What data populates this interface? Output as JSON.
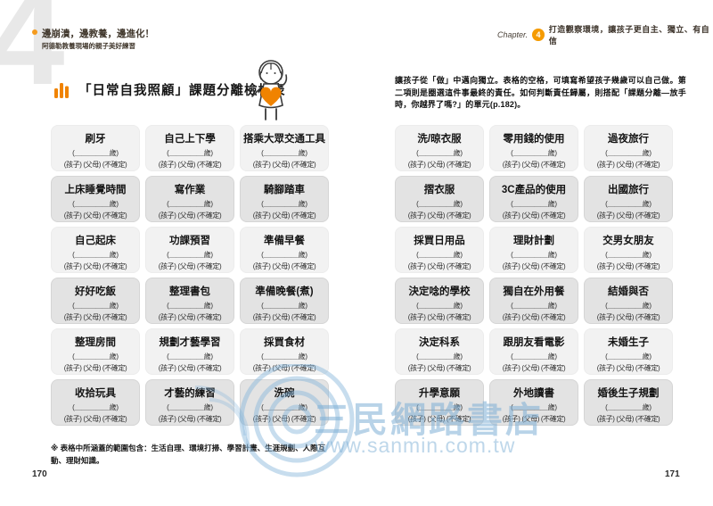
{
  "spread": {
    "big_numeral": "4",
    "tagline_line1": "邊崩潰，邊教養，邊進化！",
    "tagline_line2": "阿德勒教養現場的親子美好練習",
    "chapter_label": "Chapter.",
    "chapter_number": "4",
    "chapter_title": "打造觀察環境，讓孩子更自主、獨立、有自信"
  },
  "page_left": {
    "section_title": "「日常自我照顧」課題分離檢核表",
    "items": [
      "刷牙",
      "自己上下學",
      "搭乘大眾交通工具",
      "上床睡覺時間",
      "寫作業",
      "騎腳踏車",
      "自己起床",
      "功課預習",
      "準備早餐",
      "好好吃飯",
      "整理書包",
      "準備晚餐(煮)",
      "整理房間",
      "規劃才藝學習",
      "採買食材",
      "收拾玩具",
      "才藝的練習",
      "洗碗"
    ],
    "footnote": "※ 表格中所涵蓋的範圍包含：生活自理、環境打掃、學習計畫、生涯規劃、人際互動、理財知識。",
    "page_number": "170"
  },
  "page_right": {
    "intro": "讓孩子從「做」中邁向獨立。表格的空格，可填寫希望孩子幾歲可以自己做。第二項則是圈選這件事最終的責任。如何判斷責任歸屬，則搭配「課題分離—放手時，你越界了嗎?」的單元(p.182)。",
    "items": [
      "洗/晾衣服",
      "零用錢的使用",
      "過夜旅行",
      "摺衣服",
      "3C產品的使用",
      "出國旅行",
      "採買日用品",
      "理財計劃",
      "交男女朋友",
      "決定唸的學校",
      "獨自在外用餐",
      "結婚與否",
      "決定科系",
      "跟朋友看電影",
      "未婚生子",
      "升學意願",
      "外地讀書",
      "婚後生子規劃"
    ],
    "page_number": "171"
  },
  "cell": {
    "age_line": "(＿＿＿＿＿歲)",
    "options_line": "(孩子) (父母) (不確定)"
  },
  "watermark": {
    "store_name": "三民網路書店",
    "url": "www.sanmin.com.tw"
  },
  "colors": {
    "accent_orange": "#F08300",
    "badge_orange": "#F59B00",
    "numeral_gray": "#E8E8E8",
    "watermark_blue": "#7DAFD6",
    "cell_light": "#F2F2F2",
    "cell_dark": "#E3E3E3"
  }
}
